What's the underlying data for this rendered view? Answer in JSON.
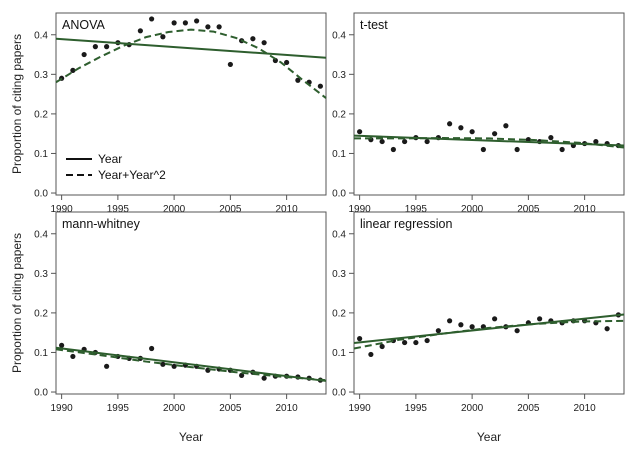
{
  "figure": {
    "ylabel": "Proportion of citing papers",
    "xlabel": "Year",
    "line_color": "#2e5e2e",
    "point_color": "#1a1a1a"
  },
  "legend": {
    "entries": [
      {
        "label": "Year",
        "style": "solid"
      },
      {
        "label": "Year+Year^2",
        "style": "dashed"
      }
    ],
    "panel": 0,
    "placement": "bottom-left"
  },
  "chart_data": [
    {
      "type": "scatter",
      "title": "ANOVA",
      "xlim": [
        1989.5,
        2013.5
      ],
      "ylim": [
        -0.005,
        0.455
      ],
      "xticks": [
        1990,
        1995,
        2000,
        2005,
        2010
      ],
      "yticks": [
        0.0,
        0.1,
        0.2,
        0.3,
        0.4
      ],
      "xlabel": "",
      "ylabel": "Proportion of citing papers",
      "points": {
        "x": [
          1990,
          1991,
          1992,
          1993,
          1994,
          1995,
          1996,
          1997,
          1998,
          1999,
          2000,
          2001,
          2002,
          2003,
          2004,
          2005,
          2006,
          2007,
          2008,
          2009,
          2010,
          2011,
          2012,
          2013
        ],
        "y": [
          0.29,
          0.31,
          0.35,
          0.37,
          0.37,
          0.38,
          0.375,
          0.41,
          0.44,
          0.395,
          0.43,
          0.43,
          0.435,
          0.42,
          0.42,
          0.325,
          0.385,
          0.39,
          0.38,
          0.335,
          0.33,
          0.285,
          0.28,
          0.27
        ]
      },
      "fit_linear": {
        "x": [
          1989.5,
          2013.5
        ],
        "y": [
          0.39,
          0.342
        ]
      },
      "fit_quadratic": {
        "x": [
          1989.5,
          1991.5,
          1993.5,
          1995.5,
          1997.5,
          1999.5,
          2001.5,
          2003.5,
          2005.5,
          2007.5,
          2009.5,
          2011.5,
          2013.5
        ],
        "y": [
          0.28,
          0.315,
          0.345,
          0.372,
          0.394,
          0.407,
          0.413,
          0.408,
          0.392,
          0.366,
          0.33,
          0.284,
          0.24
        ]
      }
    },
    {
      "type": "scatter",
      "title": "t-test",
      "xlim": [
        1989.5,
        2013.5
      ],
      "ylim": [
        -0.005,
        0.455
      ],
      "xticks": [
        1990,
        1995,
        2000,
        2005,
        2010
      ],
      "yticks": [
        0.0,
        0.1,
        0.2,
        0.3,
        0.4
      ],
      "xlabel": "",
      "ylabel": "",
      "points": {
        "x": [
          1990,
          1991,
          1992,
          1993,
          1994,
          1995,
          1996,
          1997,
          1998,
          1999,
          2000,
          2001,
          2002,
          2003,
          2004,
          2005,
          2006,
          2007,
          2008,
          2009,
          2010,
          2011,
          2012,
          2013
        ],
        "y": [
          0.155,
          0.135,
          0.13,
          0.11,
          0.13,
          0.14,
          0.13,
          0.14,
          0.175,
          0.165,
          0.155,
          0.11,
          0.15,
          0.17,
          0.11,
          0.135,
          0.13,
          0.14,
          0.11,
          0.12,
          0.125,
          0.13,
          0.125,
          0.12
        ]
      },
      "fit_linear": {
        "x": [
          1989.5,
          2013.5
        ],
        "y": [
          0.145,
          0.12
        ]
      },
      "fit_quadratic": {
        "x": [
          1989.5,
          1993.5,
          1997.5,
          2001.5,
          2005.5,
          2009.5,
          2013.5
        ],
        "y": [
          0.138,
          0.138,
          0.139,
          0.138,
          0.134,
          0.127,
          0.115
        ]
      }
    },
    {
      "type": "scatter",
      "title": "mann-whitney",
      "xlim": [
        1989.5,
        2013.5
      ],
      "ylim": [
        -0.005,
        0.455
      ],
      "xticks": [
        1990,
        1995,
        2000,
        2005,
        2010
      ],
      "yticks": [
        0.0,
        0.1,
        0.2,
        0.3,
        0.4
      ],
      "xlabel": "Year",
      "ylabel": "Proportion of citing papers",
      "points": {
        "x": [
          1990,
          1991,
          1992,
          1993,
          1994,
          1995,
          1996,
          1997,
          1998,
          1999,
          2000,
          2001,
          2002,
          2003,
          2004,
          2005,
          2006,
          2007,
          2008,
          2009,
          2010,
          2011,
          2012,
          2013
        ],
        "y": [
          0.118,
          0.09,
          0.108,
          0.1,
          0.065,
          0.09,
          0.085,
          0.085,
          0.11,
          0.07,
          0.065,
          0.068,
          0.065,
          0.055,
          0.058,
          0.055,
          0.042,
          0.05,
          0.035,
          0.04,
          0.04,
          0.038,
          0.035,
          0.03
        ]
      },
      "fit_linear": {
        "x": [
          1989.5,
          2013.5
        ],
        "y": [
          0.112,
          0.028
        ]
      },
      "fit_quadratic": {
        "x": [
          1989.5,
          1993.5,
          1997.5,
          2001.5,
          2005.5,
          2009.5,
          2013.5
        ],
        "y": [
          0.108,
          0.093,
          0.077,
          0.063,
          0.05,
          0.039,
          0.03
        ]
      }
    },
    {
      "type": "scatter",
      "title": "linear regression",
      "xlim": [
        1989.5,
        2013.5
      ],
      "ylim": [
        -0.005,
        0.455
      ],
      "xticks": [
        1990,
        1995,
        2000,
        2005,
        2010
      ],
      "yticks": [
        0.0,
        0.1,
        0.2,
        0.3,
        0.4
      ],
      "xlabel": "Year",
      "ylabel": "",
      "points": {
        "x": [
          1990,
          1991,
          1992,
          1993,
          1994,
          1995,
          1996,
          1997,
          1998,
          1999,
          2000,
          2001,
          2002,
          2003,
          2004,
          2005,
          2006,
          2007,
          2008,
          2009,
          2010,
          2011,
          2012,
          2013
        ],
        "y": [
          0.135,
          0.095,
          0.115,
          0.13,
          0.125,
          0.125,
          0.13,
          0.155,
          0.18,
          0.17,
          0.165,
          0.165,
          0.185,
          0.165,
          0.155,
          0.175,
          0.185,
          0.18,
          0.175,
          0.18,
          0.18,
          0.175,
          0.16,
          0.195
        ]
      },
      "fit_linear": {
        "x": [
          1989.5,
          2013.5
        ],
        "y": [
          0.124,
          0.196
        ]
      },
      "fit_quadratic": {
        "x": [
          1989.5,
          1993.5,
          1997.5,
          2001.5,
          2005.5,
          2009.5,
          2013.5
        ],
        "y": [
          0.11,
          0.132,
          0.148,
          0.162,
          0.172,
          0.178,
          0.18
        ]
      }
    }
  ]
}
